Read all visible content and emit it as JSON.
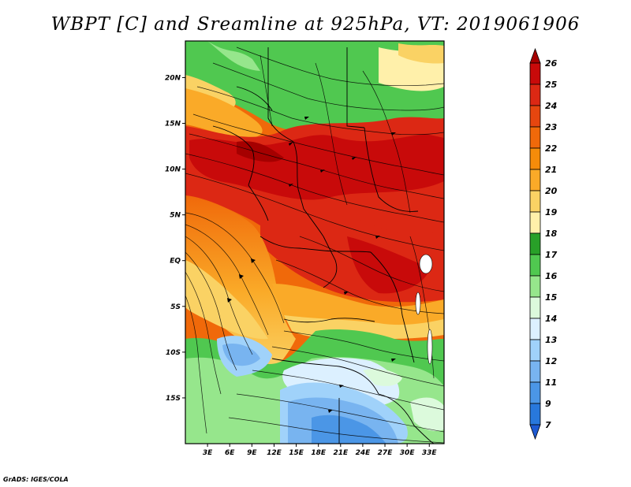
{
  "title": "WBPT [C] and Sreamline at 925hPa, VT: 2019061906",
  "credit": "GrADS: IGES/COLA",
  "map": {
    "region": "Africa",
    "lon_range": [
      0,
      35
    ],
    "lat_range": [
      -20,
      24
    ],
    "lon_ticks": [
      {
        "value": 3,
        "label": "3E"
      },
      {
        "value": 6,
        "label": "6E"
      },
      {
        "value": 9,
        "label": "9E"
      },
      {
        "value": 12,
        "label": "12E"
      },
      {
        "value": 15,
        "label": "15E"
      },
      {
        "value": 18,
        "label": "18E"
      },
      {
        "value": 21,
        "label": "21E"
      },
      {
        "value": 24,
        "label": "24E"
      },
      {
        "value": 27,
        "label": "27E"
      },
      {
        "value": 30,
        "label": "30E"
      },
      {
        "value": 33,
        "label": "33E"
      }
    ],
    "lat_ticks": [
      {
        "value": 20,
        "label": "20N"
      },
      {
        "value": 15,
        "label": "15N"
      },
      {
        "value": 10,
        "label": "10N"
      },
      {
        "value": 5,
        "label": "5N"
      },
      {
        "value": 0,
        "label": "EQ"
      },
      {
        "value": -5,
        "label": "5S"
      },
      {
        "value": -10,
        "label": "10S"
      },
      {
        "value": -15,
        "label": "15S"
      }
    ]
  },
  "colorbar": {
    "labels": [
      "26",
      "25",
      "24",
      "23",
      "22",
      "21",
      "20",
      "19",
      "18",
      "17",
      "16",
      "15",
      "14",
      "13",
      "12",
      "11",
      "9",
      "7"
    ],
    "colors": [
      "#a50000",
      "#c80a0a",
      "#dc2814",
      "#e6460f",
      "#f0690a",
      "#f58c0a",
      "#faaa28",
      "#fad264",
      "#fff0aa",
      "#28a028",
      "#50c850",
      "#96e68c",
      "#dcfadc",
      "#dcf0ff",
      "#a0d2fa",
      "#78b4f0",
      "#4b96e6",
      "#2878dc",
      "#1e5ad2"
    ]
  }
}
